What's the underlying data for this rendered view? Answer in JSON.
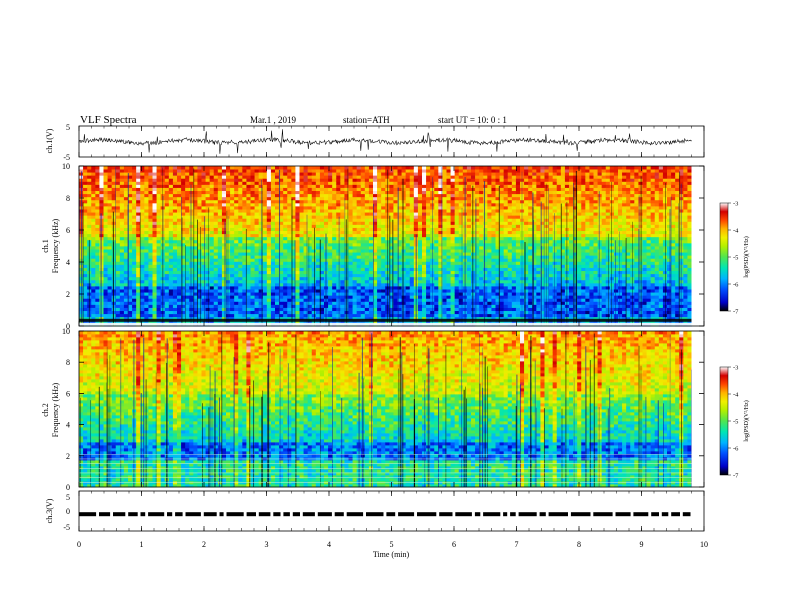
{
  "header": {
    "title": "VLF Spectra",
    "date": "Mar.1 , 2019",
    "station": "station=ATH",
    "start_ut": "start UT = 10: 0 : 1"
  },
  "chart_data": [
    {
      "type": "line",
      "panel": "ch1-waveform",
      "ylabel": "ch.1(V)",
      "xlim": [
        0,
        10
      ],
      "ylim": [
        -5,
        5
      ],
      "yticks": [
        "5",
        "-5"
      ],
      "data_extent_x": [
        0,
        9.8
      ]
    },
    {
      "type": "heatmap",
      "panel": "ch1-spectrogram",
      "ylabel_line1": "ch.1",
      "ylabel_line2": "Frequency (kHz)",
      "xlim": [
        0,
        10
      ],
      "ylim": [
        0,
        10
      ],
      "yticks": [
        "0",
        "2",
        "4",
        "6",
        "8",
        "10"
      ],
      "colorbar": {
        "label": "log(PSD)(V²/Hz)",
        "range": [
          -7,
          -3
        ],
        "ticks": [
          "-3",
          "-4",
          "-5",
          "-6",
          "-7"
        ]
      }
    },
    {
      "type": "heatmap",
      "panel": "ch2-spectrogram",
      "ylabel_line1": "ch.2",
      "ylabel_line2": "Frequency (kHz)",
      "xlim": [
        0,
        10
      ],
      "ylim": [
        0,
        10
      ],
      "yticks": [
        "0",
        "2",
        "4",
        "6",
        "8",
        "10"
      ],
      "colorbar": {
        "label": "log(PSD)(V²/Hz)",
        "range": [
          -7,
          -3
        ],
        "ticks": [
          "-3",
          "-4",
          "-5",
          "-6",
          "-7"
        ]
      }
    },
    {
      "type": "line",
      "panel": "ch3-waveform",
      "ylabel": "ch.3(V)",
      "xlim": [
        0,
        10
      ],
      "ylim": [
        -5,
        5
      ],
      "yticks": [
        "5",
        "0",
        "-5"
      ],
      "xlabel": "Time (min)",
      "xticks": [
        "0",
        "1",
        "2",
        "3",
        "4",
        "5",
        "6",
        "7",
        "8",
        "9",
        "10"
      ]
    }
  ],
  "colors": {
    "colormap": [
      "#000000",
      "#0000c8",
      "#0050ff",
      "#00b4ff",
      "#00e6b4",
      "#50e650",
      "#b4f000",
      "#f0f000",
      "#ffb400",
      "#ff4600",
      "#d20000",
      "#ffffff"
    ]
  }
}
